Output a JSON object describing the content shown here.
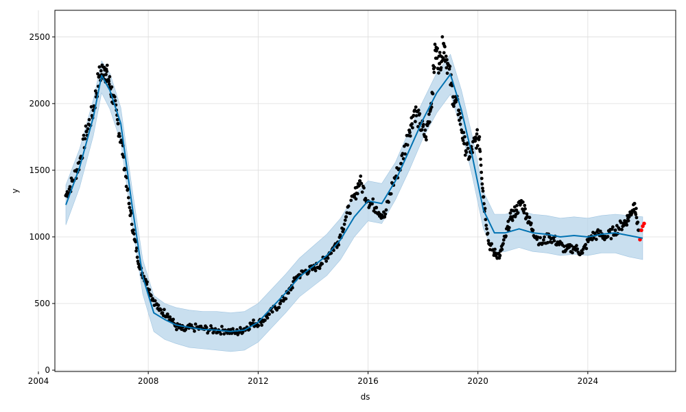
{
  "chart_data": {
    "type": "line",
    "xlabel": "ds",
    "ylabel": "y",
    "xlim": [
      2004.6,
      2027.2
    ],
    "ylim": [
      -10,
      2700
    ],
    "grid": true,
    "xticks": [
      {
        "value": 2004,
        "label": "2004"
      },
      {
        "value": 2008,
        "label": "2008"
      },
      {
        "value": 2012,
        "label": "2012"
      },
      {
        "value": 2016,
        "label": "2016"
      },
      {
        "value": 2020,
        "label": "2020"
      },
      {
        "value": 2024,
        "label": "2024"
      }
    ],
    "yticks": [
      {
        "value": 0,
        "label": "0"
      },
      {
        "value": 500,
        "label": "500"
      },
      {
        "value": 1000,
        "label": "1000"
      },
      {
        "value": 1500,
        "label": "1500"
      },
      {
        "value": 2000,
        "label": "2000"
      },
      {
        "value": 2500,
        "label": "2500"
      }
    ],
    "colors": {
      "forecast_line": "#0072B2",
      "uncertainty_band": "#b7d4ea",
      "observed_points": "#000000",
      "recent_points": "#ff0000"
    },
    "forecast": {
      "x": [
        2005.0,
        2005.5,
        2006.0,
        2006.3,
        2006.6,
        2007.0,
        2007.4,
        2007.8,
        2008.2,
        2008.6,
        2009.0,
        2009.5,
        2010.0,
        2010.5,
        2011.0,
        2011.5,
        2012.0,
        2012.5,
        2013.0,
        2013.5,
        2014.0,
        2014.5,
        2015.0,
        2015.5,
        2016.0,
        2016.5,
        2017.0,
        2017.5,
        2018.0,
        2018.5,
        2019.0,
        2019.4,
        2019.8,
        2020.2,
        2020.6,
        2021.0,
        2021.5,
        2022.0,
        2022.5,
        2023.0,
        2023.5,
        2024.0,
        2024.5,
        2025.0,
        2025.5,
        2026.0
      ],
      "y": [
        1240,
        1520,
        1900,
        2210,
        2100,
        1850,
        1250,
        700,
        430,
        380,
        340,
        320,
        305,
        300,
        290,
        300,
        360,
        470,
        580,
        700,
        780,
        860,
        980,
        1150,
        1270,
        1250,
        1420,
        1650,
        1880,
        2080,
        2220,
        1950,
        1600,
        1200,
        1030,
        1030,
        1060,
        1030,
        1020,
        1000,
        1010,
        1000,
        1020,
        1030,
        1010,
        990
      ],
      "upper": [
        1390,
        1660,
        2030,
        2320,
        2230,
        1970,
        1380,
        830,
        560,
        500,
        470,
        450,
        440,
        440,
        430,
        440,
        500,
        610,
        720,
        840,
        930,
        1020,
        1140,
        1310,
        1420,
        1400,
        1560,
        1800,
        2020,
        2230,
        2370,
        2100,
        1750,
        1340,
        1170,
        1170,
        1200,
        1170,
        1160,
        1140,
        1150,
        1140,
        1160,
        1170,
        1160,
        1150
      ],
      "lower": [
        1090,
        1370,
        1760,
        2080,
        1960,
        1710,
        1110,
        570,
        290,
        230,
        200,
        170,
        160,
        150,
        140,
        150,
        210,
        320,
        430,
        550,
        630,
        710,
        830,
        1000,
        1120,
        1100,
        1280,
        1500,
        1740,
        1930,
        2070,
        1800,
        1450,
        1060,
        880,
        890,
        920,
        890,
        880,
        860,
        870,
        860,
        880,
        880,
        850,
        830
      ]
    },
    "observed": {
      "x": [
        2005.0,
        2005.25,
        2005.5,
        2005.75,
        2006.0,
        2006.2,
        2006.4,
        2006.55,
        2006.7,
        2006.9,
        2007.1,
        2007.3,
        2007.5,
        2007.7,
        2007.9,
        2008.1,
        2008.4,
        2008.7,
        2009.0,
        2009.3,
        2009.6,
        2010.0,
        2010.4,
        2010.8,
        2011.2,
        2011.5,
        2011.8,
        2012.1,
        2012.4,
        2012.8,
        2013.1,
        2013.4,
        2013.7,
        2014.0,
        2014.3,
        2014.6,
        2014.9,
        2015.2,
        2015.5,
        2015.7,
        2016.0,
        2016.3,
        2016.6,
        2016.9,
        2017.2,
        2017.5,
        2017.7,
        2017.9,
        2018.1,
        2018.3,
        2018.45,
        2018.6,
        2018.75,
        2018.9,
        2019.1,
        2019.3,
        2019.5,
        2019.7,
        2019.9,
        2020.05,
        2020.2,
        2020.4,
        2020.6,
        2020.8,
        2021.0,
        2021.2,
        2021.4,
        2021.6,
        2021.8,
        2022.0,
        2022.3,
        2022.6,
        2022.9,
        2023.2,
        2023.5,
        2023.8,
        2024.1,
        2024.4,
        2024.7,
        2025.0,
        2025.3,
        2025.5,
        2025.7,
        2025.85
      ],
      "y": [
        1310,
        1420,
        1560,
        1790,
        1950,
        2200,
        2270,
        2180,
        2060,
        1850,
        1600,
        1250,
        980,
        760,
        680,
        560,
        450,
        420,
        330,
        300,
        320,
        310,
        300,
        300,
        280,
        310,
        350,
        360,
        420,
        500,
        580,
        700,
        740,
        760,
        800,
        880,
        960,
        1150,
        1300,
        1420,
        1270,
        1220,
        1150,
        1400,
        1550,
        1800,
        1950,
        1850,
        1750,
        2000,
        2400,
        2300,
        2450,
        2300,
        2050,
        1950,
        1700,
        1600,
        1720,
        1750,
        1300,
        950,
        880,
        860,
        1000,
        1150,
        1200,
        1260,
        1150,
        1050,
        950,
        1000,
        960,
        900,
        920,
        880,
        1000,
        1020,
        1000,
        1050,
        1100,
        1150,
        1250,
        1050
      ],
      "recent_x": [
        2025.9,
        2025.95,
        2026.0,
        2026.05
      ],
      "recent_y": [
        980,
        1050,
        1080,
        1100
      ]
    }
  }
}
